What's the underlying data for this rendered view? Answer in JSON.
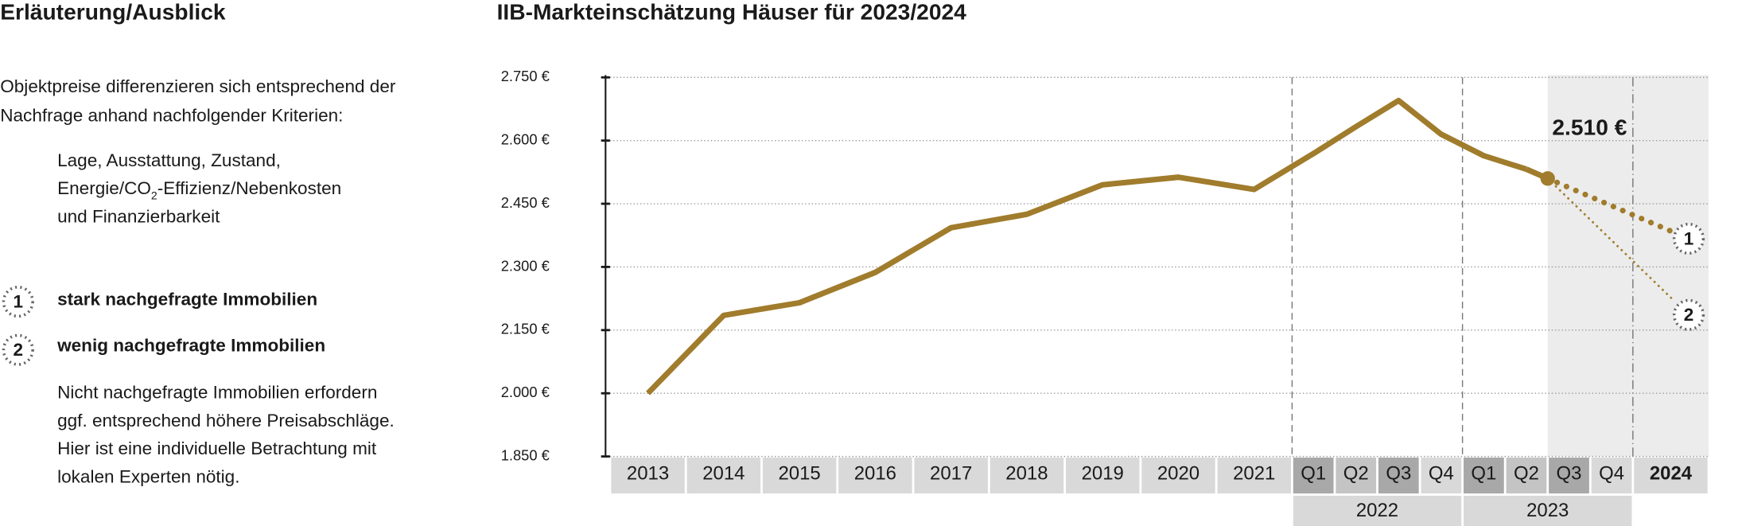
{
  "explanation": {
    "title": "Erläuterung/Ausblick",
    "intro": [
      "Objektpreise differenzieren sich entsprechend der",
      "Nachfrage anhand nachfolgender Kriterien:"
    ],
    "criteria": [
      "Lage, Ausstattung, Zustand,",
      {
        "before": "Energie/CO",
        "sub": "2",
        "after": "-Effizienz/Nebenkosten"
      },
      "und Finanzierbarkeit"
    ],
    "note": [
      "Nicht nachgefragte Immobilien erfordern",
      "ggf. entsprechend höhere Preisabschläge.",
      "Hier ist eine individuelle Betrachtung mit",
      "lokalen Experten nötig."
    ]
  },
  "chart_data": {
    "type": "line",
    "title": "IIB-Markteinschätzung Häuser für 2023/2024",
    "categories": [
      {
        "label": "2013"
      },
      {
        "label": "2014"
      },
      {
        "label": "2015"
      },
      {
        "label": "2016"
      },
      {
        "label": "2017"
      },
      {
        "label": "2018"
      },
      {
        "label": "2019"
      },
      {
        "label": "2020"
      },
      {
        "label": "2021"
      },
      {
        "label": "Q1",
        "group": "2022"
      },
      {
        "label": "Q2",
        "group": "2022"
      },
      {
        "label": "Q3",
        "group": "2022"
      },
      {
        "label": "Q4",
        "group": "2022"
      },
      {
        "label": "Q1",
        "group": "2023"
      },
      {
        "label": "Q2",
        "group": "2023"
      },
      {
        "label": "Q3",
        "group": "2023"
      },
      {
        "label": "Q4",
        "group": "2023"
      },
      {
        "label": "2024"
      }
    ],
    "series": [
      {
        "color": "#a07c2c",
        "values": [
          2000,
          2185,
          2215,
          2287,
          2393,
          2425,
          2495,
          2513,
          2484,
          2569,
          2633,
          2695,
          2615,
          2564,
          2532,
          null,
          null,
          null
        ]
      },
      {
        "name": "stark nachgefragte Immobilien",
        "marker": "1",
        "color": "#a07c2c",
        "values": [
          null,
          null,
          null,
          null,
          null,
          null,
          null,
          null,
          null,
          null,
          null,
          null,
          null,
          null,
          null,
          null,
          null,
          2367
        ]
      },
      {
        "name": "wenig nachgefragte Immobilien",
        "marker": "2",
        "color": "#a07c2c",
        "values": [
          null,
          null,
          null,
          null,
          null,
          null,
          null,
          null,
          null,
          null,
          null,
          null,
          null,
          null,
          null,
          null,
          null,
          2186
        ]
      }
    ],
    "current": {
      "value": 2510,
      "label": "2.510 €"
    },
    "ylim": [
      1850,
      2750
    ],
    "yticks": [
      {
        "value": 1850,
        "label": "1.850 €"
      },
      {
        "value": 2000,
        "label": "2.000 €"
      },
      {
        "value": 2150,
        "label": "2.150 €"
      },
      {
        "value": 2300,
        "label": "2.300 €"
      },
      {
        "value": 2450,
        "label": "2.450 €"
      },
      {
        "value": 2600,
        "label": "2.600 €"
      },
      {
        "value": 2750,
        "label": "2.750 €"
      }
    ],
    "grid": true
  }
}
